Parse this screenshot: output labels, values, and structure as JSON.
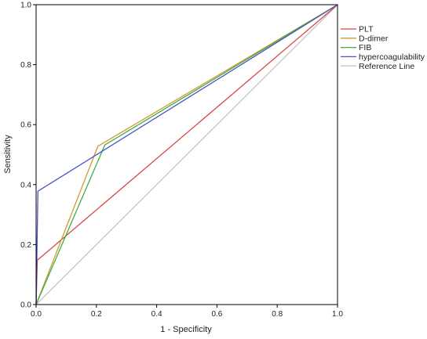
{
  "chart_data": {
    "type": "line",
    "title": "",
    "xlabel": "1 - Specificity",
    "ylabel": "Sensitivity",
    "xlim": [
      0,
      1
    ],
    "ylim": [
      0,
      1
    ],
    "x_ticks": [
      "0.0",
      "0.2",
      "0.4",
      "0.6",
      "0.8",
      "1.0"
    ],
    "y_ticks": [
      "0.0",
      "0.2",
      "0.4",
      "0.6",
      "0.8",
      "1.0"
    ],
    "grid": false,
    "legend_position": "top-right",
    "series": [
      {
        "name": "PLT",
        "color": "#d64545",
        "x": [
          0,
          0.004,
          1
        ],
        "y": [
          0,
          0.148,
          1
        ]
      },
      {
        "name": "D-dimer",
        "color": "#d39a2a",
        "x": [
          0,
          0.205,
          1
        ],
        "y": [
          0,
          0.528,
          1
        ]
      },
      {
        "name": "FIB",
        "color": "#3fae4a",
        "x": [
          0,
          0.228,
          1
        ],
        "y": [
          0,
          0.532,
          1
        ]
      },
      {
        "name": "hypercoagulability",
        "color": "#4a52c4",
        "x": [
          0,
          0.006,
          1
        ],
        "y": [
          0,
          0.378,
          1
        ]
      },
      {
        "name": "Reference Line",
        "color": "#c4c4c4",
        "x": [
          0,
          1
        ],
        "y": [
          0,
          1
        ]
      }
    ]
  }
}
